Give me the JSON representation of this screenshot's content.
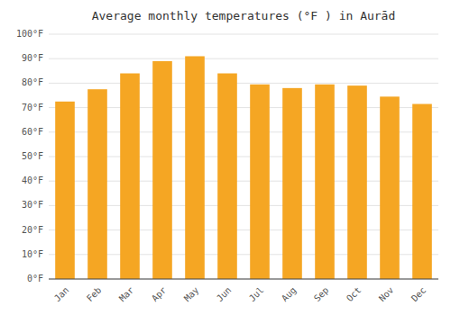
{
  "chart_data": {
    "type": "bar",
    "title": "Average monthly temperatures (°F ) in Aurād",
    "categories": [
      "Jan",
      "Feb",
      "Mar",
      "Apr",
      "May",
      "Jun",
      "Jul",
      "Aug",
      "Sep",
      "Oct",
      "Nov",
      "Dec"
    ],
    "values": [
      72.5,
      77.5,
      84,
      89,
      91,
      84,
      79.5,
      78,
      79.5,
      79,
      74.5,
      71.5
    ],
    "color": "#F5A623",
    "ylim": [
      0,
      100
    ],
    "yticks": [
      {
        "value": 0,
        "label": "0°F"
      },
      {
        "value": 10,
        "label": "10°F"
      },
      {
        "value": 20,
        "label": "20°F"
      },
      {
        "value": 30,
        "label": "30°F"
      },
      {
        "value": 40,
        "label": "40°F"
      },
      {
        "value": 50,
        "label": "50°F"
      },
      {
        "value": 60,
        "label": "60°F"
      },
      {
        "value": 70,
        "label": "70°F"
      },
      {
        "value": 80,
        "label": "80°F"
      },
      {
        "value": 90,
        "label": "90°F"
      },
      {
        "value": 100,
        "label": "100°F"
      }
    ],
    "grid": true
  }
}
